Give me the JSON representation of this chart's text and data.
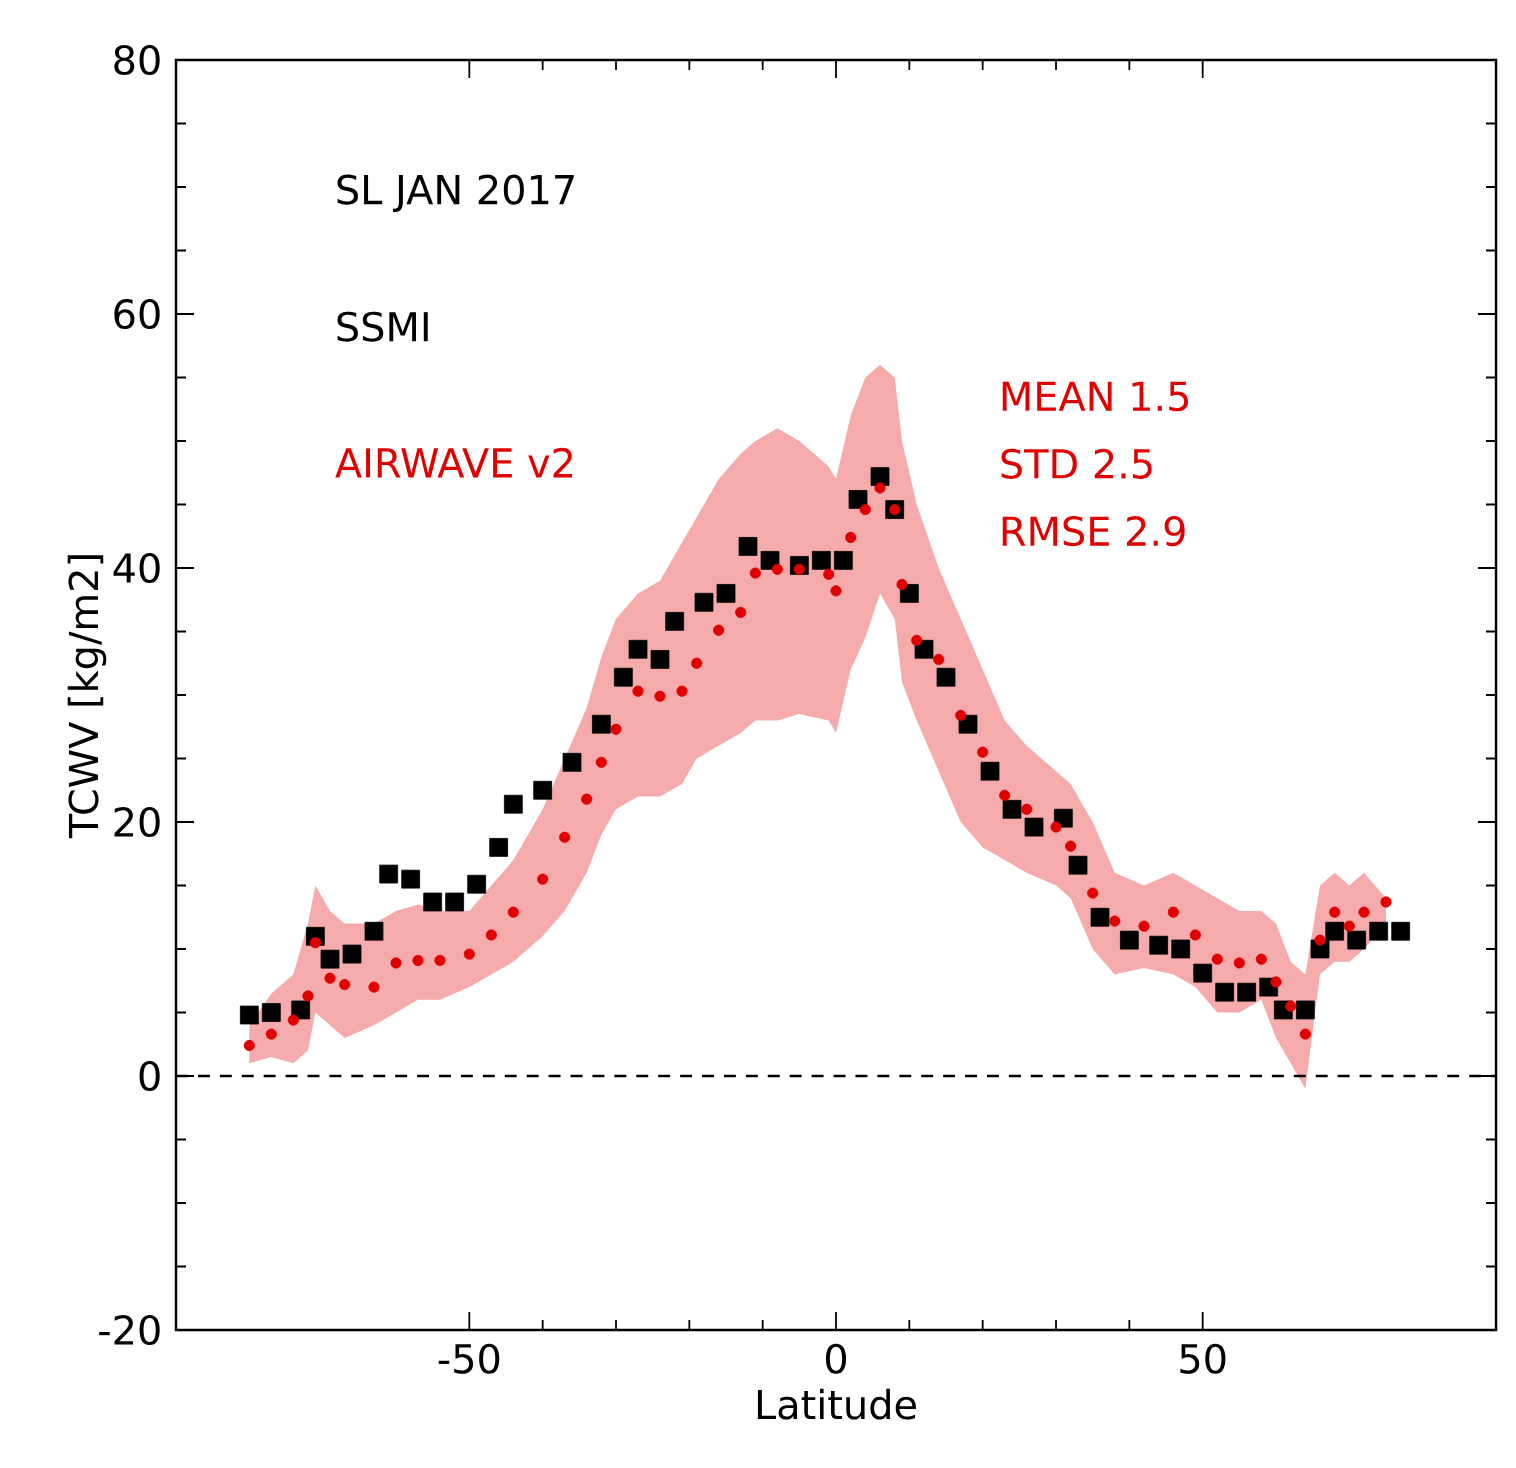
{
  "chart_data": {
    "type": "scatter",
    "xlabel": "Latitude",
    "ylabel": "TCWV [kg/m2]",
    "xlim": [
      -90,
      90
    ],
    "ylim": [
      -20,
      80
    ],
    "xticks": [
      -50,
      0,
      50
    ],
    "yticks": [
      -20,
      0,
      20,
      40,
      60,
      80
    ],
    "grid": false,
    "legend": "top left",
    "annotations": [
      "SL JAN 2017",
      "MEAN    1.5",
      "STD       2.5",
      "RMSE    2.9"
    ],
    "ref_lines": [
      {
        "axis": "y",
        "value": 0,
        "color": "#000000",
        "line_style": "dashed"
      }
    ],
    "series": [
      {
        "name": "SSMI",
        "color": "#000000",
        "marker": "square",
        "x": [
          -80,
          -77,
          -73,
          -71,
          -69,
          -66,
          -63,
          -61,
          -58,
          -55,
          -52,
          -49,
          -46,
          -44,
          -40,
          -36,
          -32,
          -29,
          -27,
          -24,
          -22,
          -18,
          -15,
          -12,
          -9,
          -5,
          -2,
          1,
          3,
          6,
          8,
          10,
          12,
          15,
          18,
          21,
          24,
          27,
          31,
          33,
          36,
          40,
          44,
          47,
          50,
          53,
          56,
          59,
          61,
          64,
          66,
          68,
          71,
          74,
          77
        ],
        "values": [
          4.8,
          5,
          5.2,
          11,
          9.2,
          9.6,
          11.4,
          15.9,
          15.5,
          13.7,
          13.7,
          15.1,
          18,
          21.4,
          22.5,
          24.7,
          27.7,
          31.4,
          33.6,
          32.8,
          35.8,
          37.3,
          38,
          41.7,
          40.6,
          40.2,
          40.6,
          40.6,
          45.4,
          47.2,
          44.6,
          38,
          33.6,
          31.4,
          27.7,
          24,
          21,
          19.6,
          20.3,
          16.6,
          12.5,
          10.7,
          10.3,
          10,
          8.1,
          6.6,
          6.6,
          7,
          5.2,
          5.2,
          10,
          11.4,
          10.7,
          11.4,
          11.4
        ]
      },
      {
        "name": "AIRWAVE v2",
        "color": "#e00000",
        "marker": "circle",
        "x": [
          -80,
          -77,
          -74,
          -72,
          -71,
          -69,
          -67,
          -63,
          -60,
          -57,
          -54,
          -50,
          -47,
          -44,
          -40,
          -37,
          -34,
          -32,
          -30,
          -27,
          -24,
          -21,
          -19,
          -16,
          -13,
          -11,
          -8,
          -5,
          -1,
          0,
          2,
          4,
          6,
          8,
          9,
          11,
          14,
          17,
          20,
          23,
          26,
          30,
          32,
          35,
          38,
          42,
          46,
          49,
          52,
          55,
          58,
          60,
          62,
          64,
          66,
          68,
          70,
          72,
          75
        ],
        "values": [
          2.4,
          3.3,
          4.4,
          6.3,
          10.5,
          7.7,
          7.2,
          7,
          8.9,
          9.1,
          9.1,
          9.6,
          11.1,
          12.9,
          15.5,
          18.8,
          21.8,
          24.7,
          27.3,
          30.3,
          29.9,
          30.3,
          32.5,
          35.1,
          36.5,
          39.6,
          39.9,
          39.9,
          39.5,
          38.2,
          42.4,
          44.6,
          46.3,
          44.6,
          38.7,
          34.3,
          32.8,
          28.4,
          25.5,
          22.1,
          21,
          19.6,
          18.1,
          14.4,
          12.2,
          11.8,
          12.9,
          11.1,
          9.2,
          8.9,
          9.2,
          7.4,
          5.5,
          3.3,
          10.7,
          12.9,
          11.8,
          12.9,
          13.7
        ],
        "lower": [
          1,
          1.5,
          1,
          2,
          5,
          4,
          3,
          4,
          5,
          6,
          6,
          7,
          8,
          9,
          11,
          13,
          16,
          19,
          21,
          22,
          22,
          23,
          25,
          26,
          27,
          28,
          28,
          28.5,
          28,
          27,
          32,
          34.5,
          38,
          36,
          31,
          28,
          24,
          20,
          18,
          17,
          16,
          15,
          14,
          10,
          8,
          8.5,
          8,
          7,
          5,
          5,
          6,
          3,
          1,
          -1,
          8,
          9,
          9,
          10,
          12
        ],
        "upper": [
          4,
          6.5,
          8,
          12,
          15,
          13,
          12,
          12,
          13,
          13.5,
          13,
          13,
          15,
          17,
          21,
          25,
          29,
          33,
          36,
          38,
          39,
          42,
          44,
          47,
          49,
          50,
          51,
          50,
          48,
          47,
          52,
          55,
          56,
          55,
          50,
          45,
          40,
          36,
          32,
          28,
          26,
          24,
          23,
          20,
          16,
          15,
          16,
          15,
          14,
          13,
          13,
          12,
          9,
          8,
          15,
          16,
          15,
          16,
          14
        ]
      }
    ]
  }
}
